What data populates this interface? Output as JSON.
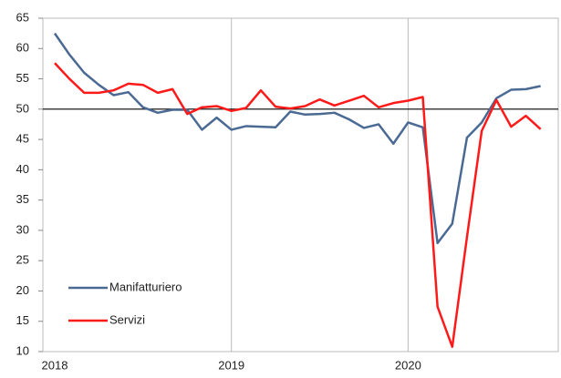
{
  "chart_data": {
    "type": "line",
    "x": [
      2018,
      2018.0833,
      2018.1667,
      2018.25,
      2018.3333,
      2018.4167,
      2018.5,
      2018.5833,
      2018.6667,
      2018.75,
      2018.8333,
      2018.9167,
      2019,
      2019.0833,
      2019.1667,
      2019.25,
      2019.3333,
      2019.4167,
      2019.5,
      2019.5833,
      2019.6667,
      2019.75,
      2019.8333,
      2019.9167,
      2020,
      2020.0833,
      2020.1667,
      2020.25,
      2020.3333,
      2020.4167,
      2020.5,
      2020.5833,
      2020.6667,
      2020.75
    ],
    "series": [
      {
        "name": "Manifatturiero",
        "color": "#4a6a94",
        "values": [
          62.5,
          59,
          56,
          54,
          52.3,
          52.8,
          50.3,
          49.4,
          49.9,
          49.9,
          46.6,
          48.6,
          46.6,
          47.2,
          47.1,
          47.0,
          49.6,
          49.1,
          49.2,
          49.4,
          48.3,
          46.9,
          47.5,
          44.3,
          47.8,
          47.0,
          27.9,
          31.1,
          45.3,
          47.8,
          51.8,
          53.2,
          53.3,
          53.8
        ]
      },
      {
        "name": "Servizi",
        "color": "#ff1a1a",
        "values": [
          57.6,
          55,
          52.7,
          52.7,
          53.1,
          54.2,
          54.0,
          52.7,
          53.3,
          49.2,
          50.3,
          50.5,
          49.7,
          50.2,
          53.1,
          50.4,
          50.1,
          50.5,
          51.6,
          50.6,
          51.4,
          52.2,
          50.3,
          51.0,
          51.4,
          52.0,
          17.4,
          10.8,
          28.9,
          46.4,
          51.5,
          47.1,
          48.9,
          46.7
        ]
      }
    ],
    "xlim": [
      2018,
      2020.85
    ],
    "xticks": [
      2018,
      2019,
      2020
    ],
    "ylim": [
      10,
      65
    ],
    "yticks": [
      10,
      15,
      20,
      25,
      30,
      35,
      40,
      45,
      50,
      55,
      60,
      65
    ],
    "reference_line": 50
  }
}
